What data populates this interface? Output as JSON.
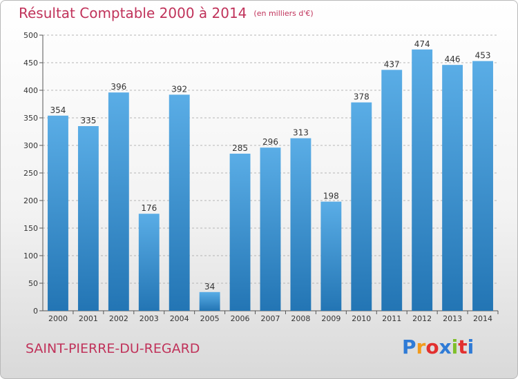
{
  "header": {
    "title": "Résultat Comptable 2000 à 2014",
    "subtitle": "(en milliers d'€)"
  },
  "footer": {
    "commune": "SAINT-PIERRE-DU-REGARD",
    "logo_letters": [
      "P",
      "r",
      "o",
      "x",
      "i",
      "t",
      "i"
    ],
    "logo_colors": [
      "#2f7bd6",
      "#f29a1b",
      "#e2302f",
      "#2f7bd6",
      "#7fbf2a",
      "#e2302f",
      "#2f7bd6"
    ]
  },
  "colors": {
    "title": "#c0325a",
    "bar_light": "#5aade6",
    "bar_dark": "#2375b4",
    "grid": "#b5b5b5"
  },
  "chart_data": {
    "type": "bar",
    "categories": [
      "2000",
      "2001",
      "2002",
      "2003",
      "2004",
      "2005",
      "2006",
      "2007",
      "2008",
      "2009",
      "2010",
      "2011",
      "2012",
      "2013",
      "2014"
    ],
    "values": [
      354,
      335,
      396,
      176,
      392,
      34,
      285,
      296,
      313,
      198,
      378,
      437,
      474,
      446,
      453
    ],
    "title": "Résultat Comptable 2000 à 2014",
    "ylim": [
      0,
      500
    ],
    "yticks": [
      0,
      50,
      100,
      150,
      200,
      250,
      300,
      350,
      400,
      450,
      500
    ],
    "grid": true
  }
}
